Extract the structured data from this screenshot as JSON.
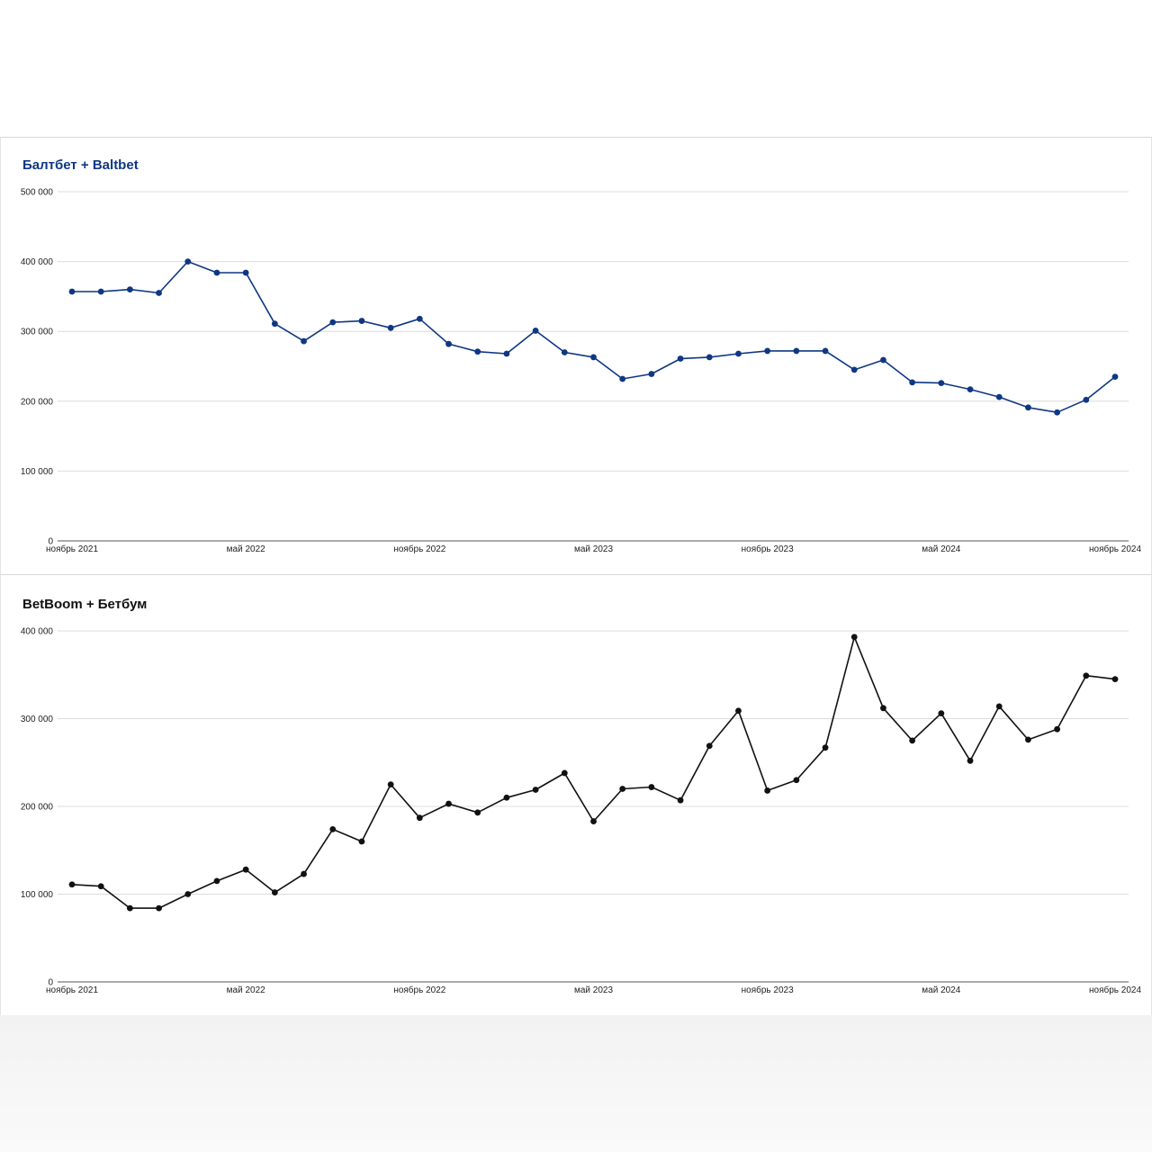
{
  "chart_data": [
    {
      "type": "line",
      "title": "Балтбет + Baltbet",
      "title_color": "#0f3783",
      "line_color": "#0f3783",
      "x_tick_labels": [
        "ноябрь 2021",
        "май 2022",
        "ноябрь 2022",
        "май 2023",
        "ноябрь 2023",
        "май 2024",
        "ноябрь 2024"
      ],
      "y_tick_labels": [
        "0",
        "100 000",
        "200 000",
        "300 000",
        "400 000",
        "500 000"
      ],
      "ylim": [
        0,
        500000
      ],
      "grid": true,
      "series": [
        {
          "x": [
            "2021-11",
            "2021-12",
            "2022-01",
            "2022-02",
            "2022-03",
            "2022-04",
            "2022-05",
            "2022-06",
            "2022-07",
            "2022-08",
            "2022-09",
            "2022-10",
            "2022-11",
            "2022-12",
            "2023-01",
            "2023-02",
            "2023-03",
            "2023-04",
            "2023-05",
            "2023-06",
            "2023-07",
            "2023-08",
            "2023-09",
            "2023-10",
            "2023-11",
            "2023-12",
            "2024-01",
            "2024-02",
            "2024-03",
            "2024-04",
            "2024-05",
            "2024-06",
            "2024-07",
            "2024-08",
            "2024-09",
            "2024-10",
            "2024-11"
          ],
          "values": [
            357000,
            357000,
            360000,
            355000,
            400000,
            384000,
            384000,
            311000,
            286000,
            313000,
            315000,
            305000,
            318000,
            282000,
            271000,
            268000,
            301000,
            270000,
            263000,
            232000,
            239000,
            261000,
            263000,
            268000,
            272000,
            272000,
            272000,
            245000,
            259000,
            227000,
            226000,
            217000,
            206000,
            191000,
            184000,
            202000,
            235000
          ]
        }
      ]
    },
    {
      "type": "line",
      "title": "BetBoom + Бетбум",
      "title_color": "#111111",
      "line_color": "#111111",
      "x_tick_labels": [
        "ноябрь 2021",
        "май 2022",
        "ноябрь 2022",
        "май 2023",
        "ноябрь 2023",
        "май 2024",
        "ноябрь 2024"
      ],
      "y_tick_labels": [
        "0",
        "100 000",
        "200 000",
        "300 000",
        "400 000"
      ],
      "ylim": [
        0,
        400000
      ],
      "grid": true,
      "series": [
        {
          "x": [
            "2021-11",
            "2021-12",
            "2022-01",
            "2022-02",
            "2022-03",
            "2022-04",
            "2022-05",
            "2022-06",
            "2022-07",
            "2022-08",
            "2022-09",
            "2022-10",
            "2022-11",
            "2022-12",
            "2023-01",
            "2023-02",
            "2023-03",
            "2023-04",
            "2023-05",
            "2023-06",
            "2023-07",
            "2023-08",
            "2023-09",
            "2023-10",
            "2023-11",
            "2023-12",
            "2024-01",
            "2024-02",
            "2024-03",
            "2024-04",
            "2024-05",
            "2024-06",
            "2024-07",
            "2024-08",
            "2024-09",
            "2024-10",
            "2024-11"
          ],
          "values": [
            111000,
            109000,
            84000,
            84000,
            100000,
            115000,
            128000,
            102000,
            123000,
            174000,
            160000,
            225000,
            187000,
            203000,
            193000,
            210000,
            219000,
            238000,
            183000,
            220000,
            222000,
            207000,
            269000,
            309000,
            218000,
            230000,
            267000,
            393000,
            312000,
            275000,
            306000,
            252000,
            314000,
            276000,
            288000,
            349000,
            345000
          ]
        }
      ]
    }
  ]
}
